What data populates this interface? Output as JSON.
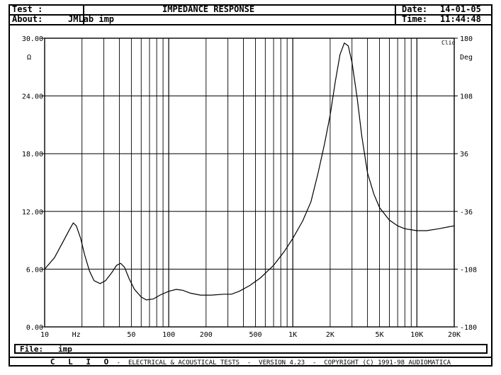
{
  "header": {
    "test_label": "Test :",
    "title": "IMPEDANCE RESPONSE",
    "about_label": "About:",
    "about_value": "JMLab imp",
    "date_label": "Date:",
    "date_value": "14-01-05",
    "time_label": "Time:",
    "time_value": "11:44:48"
  },
  "file": {
    "label": "File:",
    "value": "imp"
  },
  "footer": {
    "brand": "C L I O",
    "text": " -  ELECTRICAL & ACOUSTICAL TESTS  -  VERSION 4.23  -  COPYRIGHT (C) 1991-98 AUDIOMATICA"
  },
  "chart_data": {
    "type": "line",
    "badge": "Clio",
    "xscale": "log",
    "xlim": [
      10,
      20000
    ],
    "ylim": [
      0,
      30
    ],
    "y2lim": [
      -180,
      180
    ],
    "ylabel": "Ω",
    "y2label": "Deg",
    "xunit": "Hz",
    "grid": true,
    "xticks": [
      {
        "v": 10,
        "label": "10"
      },
      {
        "v": 50,
        "label": "50"
      },
      {
        "v": 100,
        "label": "100"
      },
      {
        "v": 200,
        "label": "200"
      },
      {
        "v": 500,
        "label": "500"
      },
      {
        "v": 1000,
        "label": "1K"
      },
      {
        "v": 2000,
        "label": "2K"
      },
      {
        "v": 5000,
        "label": "5K"
      },
      {
        "v": 10000,
        "label": "10K"
      },
      {
        "v": 20000,
        "label": "20K"
      }
    ],
    "yticks": [
      "0.00",
      "6.00",
      "12.00",
      "18.00",
      "24.00",
      "30.00"
    ],
    "y2ticks": [
      "-180",
      "-108",
      "-36",
      "36",
      "108",
      "180"
    ],
    "series": [
      {
        "points": [
          [
            10,
            6.0
          ],
          [
            12,
            7.2
          ],
          [
            14,
            8.8
          ],
          [
            16,
            10.2
          ],
          [
            17,
            10.8
          ],
          [
            18,
            10.5
          ],
          [
            19.5,
            9.2
          ],
          [
            21,
            7.5
          ],
          [
            23,
            5.8
          ],
          [
            25,
            4.8
          ],
          [
            28,
            4.5
          ],
          [
            31,
            4.8
          ],
          [
            35,
            5.7
          ],
          [
            38,
            6.4
          ],
          [
            41,
            6.6
          ],
          [
            44,
            6.2
          ],
          [
            48,
            5.0
          ],
          [
            53,
            3.9
          ],
          [
            60,
            3.1
          ],
          [
            66,
            2.8
          ],
          [
            75,
            2.9
          ],
          [
            85,
            3.3
          ],
          [
            100,
            3.7
          ],
          [
            115,
            3.9
          ],
          [
            130,
            3.8
          ],
          [
            150,
            3.5
          ],
          [
            180,
            3.3
          ],
          [
            220,
            3.3
          ],
          [
            280,
            3.4
          ],
          [
            320,
            3.4
          ],
          [
            370,
            3.7
          ],
          [
            450,
            4.3
          ],
          [
            550,
            5.1
          ],
          [
            700,
            6.4
          ],
          [
            850,
            7.8
          ],
          [
            1000,
            9.2
          ],
          [
            1200,
            11.0
          ],
          [
            1400,
            13.0
          ],
          [
            1600,
            16.0
          ],
          [
            1800,
            19.0
          ],
          [
            2000,
            22.0
          ],
          [
            2200,
            25.5
          ],
          [
            2400,
            28.3
          ],
          [
            2600,
            29.5
          ],
          [
            2800,
            29.2
          ],
          [
            3000,
            27.5
          ],
          [
            3300,
            23.8
          ],
          [
            3600,
            19.8
          ],
          [
            4000,
            16.0
          ],
          [
            4500,
            13.8
          ],
          [
            5000,
            12.4
          ],
          [
            6000,
            11.1
          ],
          [
            7000,
            10.5
          ],
          [
            8000,
            10.2
          ],
          [
            10000,
            10.0
          ],
          [
            12000,
            10.0
          ],
          [
            15000,
            10.2
          ],
          [
            18000,
            10.4
          ],
          [
            20000,
            10.5
          ]
        ]
      }
    ]
  }
}
